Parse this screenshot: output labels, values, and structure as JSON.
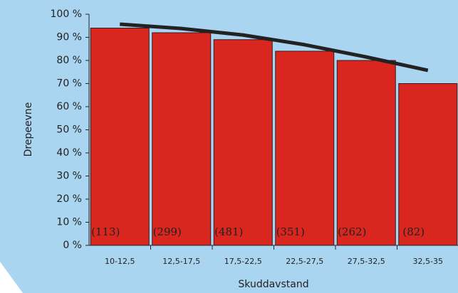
{
  "chart_data": {
    "type": "bar",
    "x_label": "Skuddavstand",
    "y_label": "Drepeevne",
    "categories": [
      "10-12,5",
      "12,5-17,5",
      "17,5-22,5",
      "22,5-27,5",
      "27,5-32,5",
      "32,5-35"
    ],
    "values": [
      94,
      92,
      89,
      84,
      80,
      70
    ],
    "annotations": [
      "(113)",
      "(299)",
      "(481)",
      "(351)",
      "(262)",
      "(82)"
    ],
    "color": "#d9261e",
    "line_values": [
      95.7,
      93.8,
      91,
      86.8,
      81.5,
      75.7
    ],
    "line_color": "#222222",
    "ylim": [
      0,
      100
    ],
    "yticks": [
      {
        "value": 0,
        "label": "0 %"
      },
      {
        "value": 10,
        "label": "10 %"
      },
      {
        "value": 20,
        "label": "20 %"
      },
      {
        "value": 30,
        "label": "30 %"
      },
      {
        "value": 40,
        "label": "40 %"
      },
      {
        "value": 50,
        "label": "50 %"
      },
      {
        "value": 60,
        "label": "60 %"
      },
      {
        "value": 70,
        "label": "70 %"
      },
      {
        "value": 80,
        "label": "80 %"
      },
      {
        "value": 90,
        "label": "90 %"
      },
      {
        "value": 100,
        "label": "100 %"
      }
    ]
  }
}
